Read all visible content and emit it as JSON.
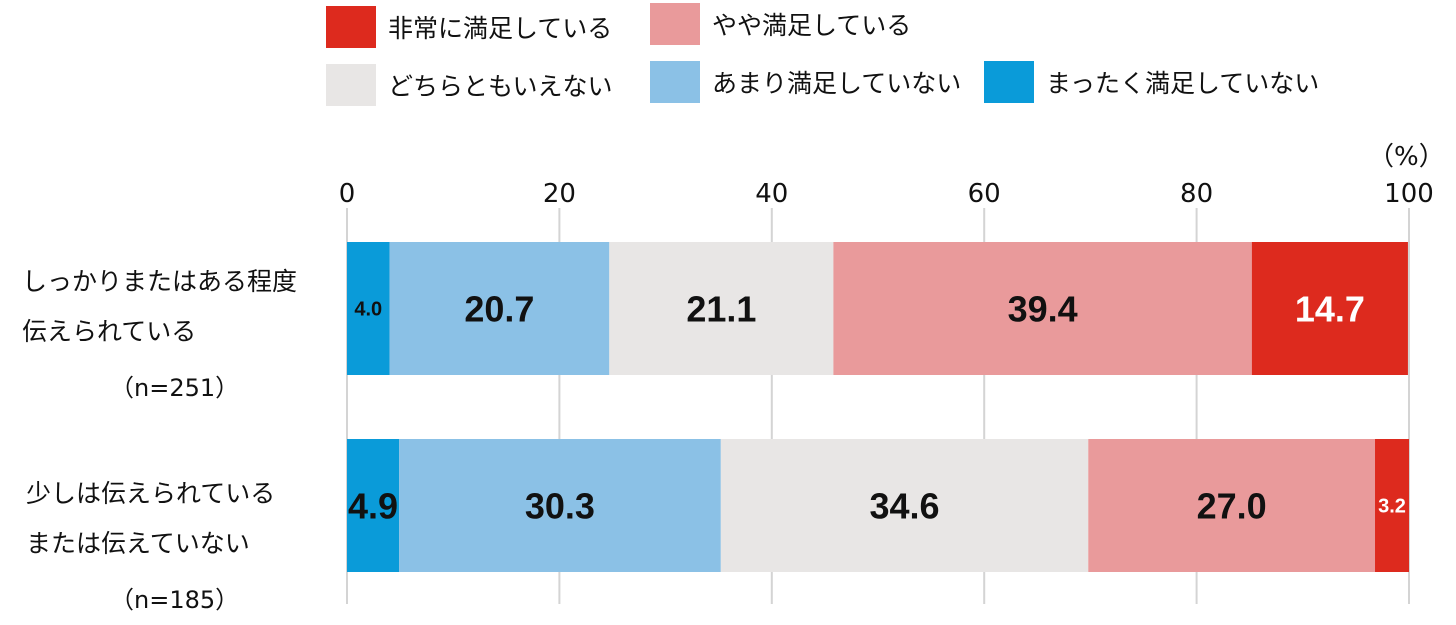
{
  "chart_data": {
    "type": "bar",
    "orientation": "horizontal",
    "stacked": true,
    "unit": "（%）",
    "xlim": [
      0,
      100
    ],
    "xticks": [
      "0",
      "20",
      "40",
      "60",
      "80",
      "100"
    ],
    "grid": true,
    "legend_position": "top",
    "categories": [
      {
        "lines": [
          "しっかりまたはある程度",
          "伝えられている"
        ],
        "n": "（n=251）"
      },
      {
        "lines": [
          "少しは伝えられている",
          "または伝えていない"
        ],
        "n": "（n=185）"
      }
    ],
    "series": [
      {
        "name": "まったく満足していない",
        "color": "#0a9bd9",
        "label_color": "#111111",
        "values": [
          4.0,
          4.9
        ]
      },
      {
        "name": "あまり満足していない",
        "color": "#8bc1e6",
        "label_color": "#111111",
        "values": [
          20.7,
          30.3
        ]
      },
      {
        "name": "どちらともいえない",
        "color": "#e8e6e5",
        "label_color": "#111111",
        "values": [
          21.1,
          34.6
        ]
      },
      {
        "name": "やや満足している",
        "color": "#e99a9b",
        "label_color": "#111111",
        "values": [
          39.4,
          27.0
        ]
      },
      {
        "name": "非常に満足している",
        "color": "#dd2a1e",
        "label_color": "#ffffff",
        "values": [
          14.7,
          3.2
        ]
      }
    ]
  }
}
